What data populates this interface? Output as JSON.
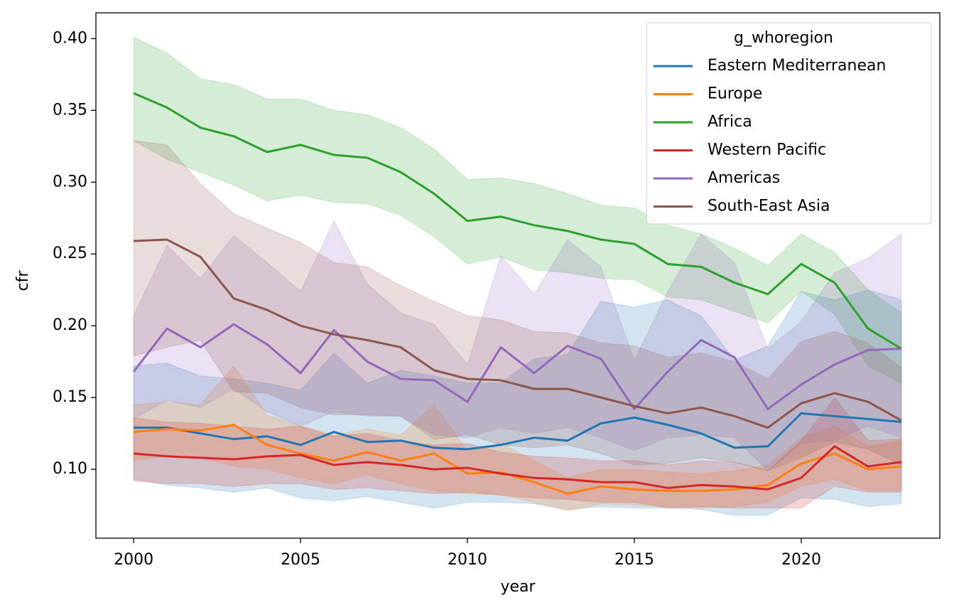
{
  "chart_data": {
    "type": "line",
    "x_label": "year",
    "y_label": "cfr",
    "x": [
      2000,
      2001,
      2002,
      2003,
      2004,
      2005,
      2006,
      2007,
      2008,
      2009,
      2010,
      2011,
      2012,
      2013,
      2014,
      2015,
      2016,
      2017,
      2018,
      2019,
      2020,
      2021,
      2022,
      2023
    ],
    "xlim": [
      1998.87,
      2024.15
    ],
    "xticks": [
      2000,
      2005,
      2010,
      2015,
      2020
    ],
    "ylim": [
      0.052,
      0.418
    ],
    "yticks": [
      {
        "value": 0.1,
        "label": "0.10"
      },
      0.15,
      {
        "value": 0.2,
        "label": "0.20"
      },
      0.25,
      {
        "value": 0.3,
        "label": "0.30"
      },
      0.35,
      {
        "value": 0.4,
        "label": "0.40"
      }
    ],
    "grid": false,
    "legend_title": "g_whoregion",
    "legend_position": "upper right",
    "series": [
      {
        "name": "Eastern Mediterranean",
        "color": "#1f77b4",
        "values": [
          0.129,
          0.129,
          0.125,
          0.121,
          0.123,
          0.117,
          0.126,
          0.119,
          0.12,
          0.115,
          0.114,
          0.117,
          0.122,
          0.12,
          0.132,
          0.136,
          0.131,
          0.125,
          0.115,
          0.116,
          0.139,
          0.137,
          0.135,
          0.133
        ],
        "upper": [
          0.172,
          0.174,
          0.165,
          0.163,
          0.16,
          0.155,
          0.181,
          0.16,
          0.169,
          0.165,
          0.16,
          0.16,
          0.177,
          0.18,
          0.217,
          0.213,
          0.218,
          0.207,
          0.176,
          0.186,
          0.224,
          0.218,
          0.225,
          0.218
        ],
        "lower": [
          0.093,
          0.089,
          0.087,
          0.084,
          0.087,
          0.08,
          0.078,
          0.081,
          0.077,
          0.073,
          0.077,
          0.077,
          0.076,
          0.072,
          0.074,
          0.073,
          0.073,
          0.072,
          0.068,
          0.068,
          0.08,
          0.079,
          0.074,
          0.076
        ]
      },
      {
        "name": "Europe",
        "color": "#ff7f0e",
        "values": [
          0.126,
          0.128,
          0.127,
          0.131,
          0.117,
          0.111,
          0.106,
          0.112,
          0.106,
          0.111,
          0.097,
          0.098,
          0.091,
          0.083,
          0.088,
          0.086,
          0.085,
          0.085,
          0.086,
          0.089,
          0.104,
          0.111,
          0.1,
          0.102
        ],
        "upper": [
          0.145,
          0.147,
          0.145,
          0.172,
          0.138,
          0.13,
          0.124,
          0.128,
          0.124,
          0.145,
          0.113,
          0.118,
          0.106,
          0.094,
          0.1,
          0.1,
          0.098,
          0.097,
          0.099,
          0.103,
          0.122,
          0.13,
          0.116,
          0.12
        ],
        "lower": [
          0.106,
          0.109,
          0.108,
          0.102,
          0.1,
          0.094,
          0.09,
          0.096,
          0.09,
          0.085,
          0.083,
          0.082,
          0.077,
          0.071,
          0.076,
          0.075,
          0.074,
          0.073,
          0.074,
          0.077,
          0.088,
          0.093,
          0.085,
          0.085
        ]
      },
      {
        "name": "Africa",
        "color": "#2ca02c",
        "values": [
          0.362,
          0.352,
          0.338,
          0.332,
          0.321,
          0.326,
          0.319,
          0.317,
          0.307,
          0.292,
          0.273,
          0.276,
          0.27,
          0.266,
          0.26,
          0.257,
          0.243,
          0.241,
          0.23,
          0.222,
          0.243,
          0.23,
          0.198,
          0.184
        ],
        "upper": [
          0.401,
          0.39,
          0.372,
          0.368,
          0.358,
          0.358,
          0.35,
          0.347,
          0.338,
          0.323,
          0.302,
          0.303,
          0.299,
          0.292,
          0.284,
          0.282,
          0.27,
          0.264,
          0.254,
          0.242,
          0.264,
          0.251,
          0.225,
          0.209
        ],
        "lower": [
          0.329,
          0.316,
          0.307,
          0.298,
          0.287,
          0.291,
          0.286,
          0.285,
          0.277,
          0.262,
          0.243,
          0.248,
          0.239,
          0.237,
          0.233,
          0.232,
          0.22,
          0.218,
          0.21,
          0.202,
          0.224,
          0.208,
          0.172,
          0.16
        ]
      },
      {
        "name": "Western Pacific",
        "color": "#d62728",
        "values": [
          0.111,
          0.109,
          0.108,
          0.107,
          0.109,
          0.11,
          0.103,
          0.105,
          0.103,
          0.1,
          0.101,
          0.097,
          0.094,
          0.093,
          0.091,
          0.091,
          0.087,
          0.089,
          0.088,
          0.086,
          0.094,
          0.116,
          0.102,
          0.105
        ],
        "upper": [
          0.136,
          0.133,
          0.132,
          0.13,
          0.128,
          0.13,
          0.123,
          0.125,
          0.12,
          0.117,
          0.118,
          0.112,
          0.109,
          0.108,
          0.106,
          0.106,
          0.103,
          0.106,
          0.105,
          0.099,
          0.12,
          0.15,
          0.12,
          0.121
        ],
        "lower": [
          0.092,
          0.09,
          0.09,
          0.088,
          0.09,
          0.09,
          0.086,
          0.087,
          0.085,
          0.083,
          0.084,
          0.082,
          0.08,
          0.079,
          0.077,
          0.077,
          0.073,
          0.074,
          0.073,
          0.073,
          0.073,
          0.088,
          0.084,
          0.084
        ]
      },
      {
        "name": "Americas",
        "color": "#9467bd",
        "values": [
          0.168,
          0.198,
          0.185,
          0.201,
          0.187,
          0.167,
          0.197,
          0.175,
          0.163,
          0.162,
          0.147,
          0.185,
          0.167,
          0.186,
          0.177,
          0.142,
          0.168,
          0.19,
          0.178,
          0.142,
          0.159,
          0.173,
          0.183,
          0.184
        ],
        "upper": [
          0.207,
          0.256,
          0.233,
          0.263,
          0.244,
          0.224,
          0.273,
          0.229,
          0.209,
          0.201,
          0.173,
          0.249,
          0.222,
          0.26,
          0.241,
          0.176,
          0.224,
          0.264,
          0.244,
          0.184,
          0.203,
          0.237,
          0.247,
          0.264
        ],
        "lower": [
          0.135,
          0.148,
          0.143,
          0.156,
          0.14,
          0.13,
          0.14,
          0.137,
          0.137,
          0.124,
          0.122,
          0.129,
          0.125,
          0.129,
          0.122,
          0.113,
          0.122,
          0.124,
          0.122,
          0.099,
          0.118,
          0.12,
          0.13,
          0.122
        ]
      },
      {
        "name": "South-East Asia",
        "color": "#8c564b",
        "values": [
          0.259,
          0.26,
          0.248,
          0.219,
          0.211,
          0.2,
          0.194,
          0.19,
          0.185,
          0.169,
          0.163,
          0.162,
          0.156,
          0.156,
          0.15,
          0.144,
          0.139,
          0.143,
          0.137,
          0.129,
          0.146,
          0.153,
          0.147,
          0.134
        ],
        "upper": [
          0.329,
          0.326,
          0.299,
          0.278,
          0.268,
          0.258,
          0.244,
          0.241,
          0.228,
          0.217,
          0.207,
          0.204,
          0.196,
          0.195,
          0.188,
          0.186,
          0.178,
          0.181,
          0.175,
          0.163,
          0.189,
          0.196,
          0.188,
          0.171
        ],
        "lower": [
          0.179,
          0.185,
          0.19,
          0.154,
          0.153,
          0.143,
          0.138,
          0.138,
          0.137,
          0.121,
          0.124,
          0.117,
          0.115,
          0.117,
          0.111,
          0.103,
          0.104,
          0.108,
          0.105,
          0.099,
          0.108,
          0.119,
          0.114,
          0.103
        ]
      }
    ]
  }
}
